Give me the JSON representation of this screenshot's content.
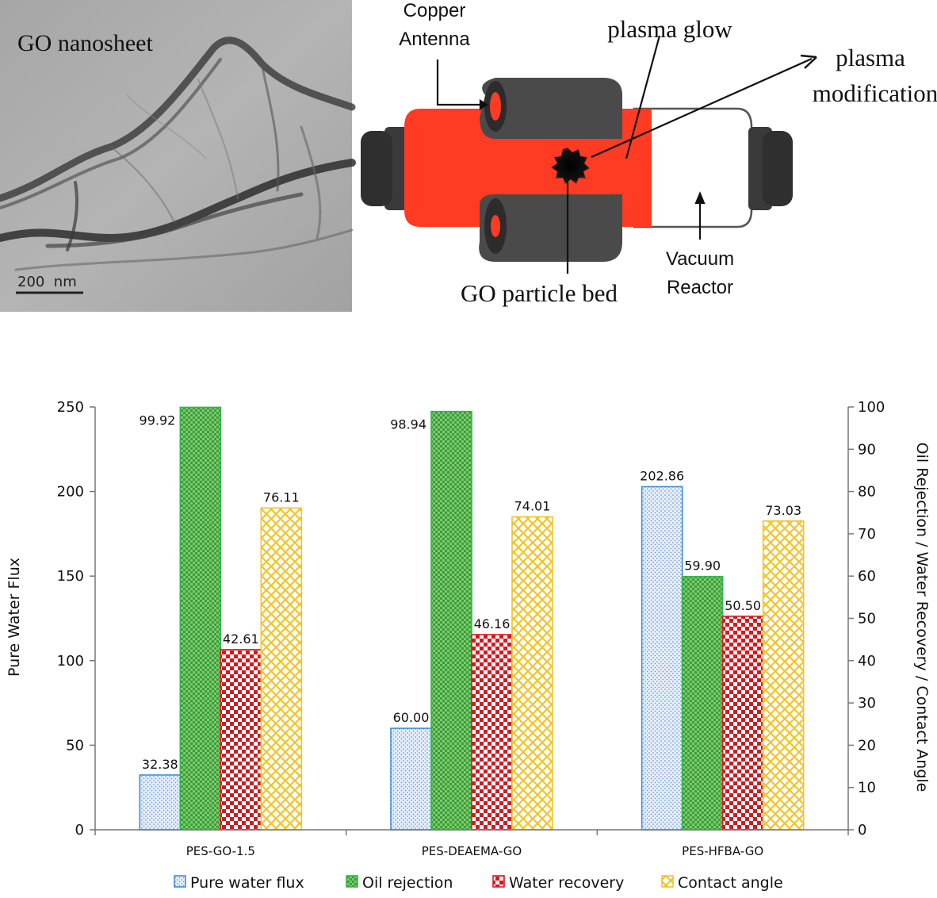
{
  "figure": {
    "tem_panel": {
      "title": "GO nanosheet",
      "scale_bar": "200  nm"
    },
    "reactor": {
      "labels": {
        "copper_antenna_1": "Copper",
        "copper_antenna_2": "Antenna",
        "plasma_glow": "plasma glow",
        "plasma_mod_1": "plasma",
        "plasma_mod_2": "modification",
        "vacuum_1": "Vacuum",
        "vacuum_2": "Reactor",
        "particle_bed": "GO particle bed"
      },
      "colors": {
        "plasma": "#ff3b24",
        "coil": "#4a4a4a",
        "cap": "#3a3a3a",
        "glass": "#ffffff"
      }
    }
  },
  "chart_data": {
    "type": "bar",
    "categories": [
      "PES-GO-1.5",
      "PES-DEAEMA-GO",
      "PES-HFBA-GO"
    ],
    "series": [
      {
        "name": "Pure water flux",
        "axis": "left",
        "values": [
          32.38,
          60.0,
          202.86
        ],
        "labels": [
          "32.38",
          "60.00",
          "202.86"
        ],
        "color": "#3d8fd8",
        "fill": "#dbe8f6"
      },
      {
        "name": "Oil rejection",
        "axis": "right",
        "values": [
          99.92,
          98.94,
          59.9
        ],
        "labels": [
          "99.92",
          "98.94",
          "59.90"
        ],
        "color": "#2fb84a",
        "fill": "#66c25e"
      },
      {
        "name": "Water recovery",
        "axis": "right",
        "values": [
          42.61,
          46.16,
          50.5
        ],
        "labels": [
          "42.61",
          "46.16",
          "50.50"
        ],
        "color": "#e01b24",
        "fill": "#cf1d24"
      },
      {
        "name": "Contact angle",
        "axis": "right",
        "values": [
          76.11,
          74.01,
          73.03
        ],
        "labels": [
          "76.11",
          "74.01",
          "73.03"
        ],
        "color": "#f2c42b",
        "fill": "#f7d25a"
      }
    ],
    "ylabel_left": "Pure Water Flux",
    "ylabel_right": "Oil Rejection / Water Recovery / Contact Angle",
    "ylim_left": [
      0,
      250
    ],
    "ylim_right": [
      0,
      100
    ],
    "yticks_left": [
      "0",
      "50",
      "100",
      "150",
      "200",
      "250"
    ],
    "yticks_right": [
      "0",
      "10",
      "20",
      "30",
      "40",
      "50",
      "60",
      "70",
      "80",
      "90",
      "100"
    ],
    "legend_position": "bottom",
    "grid": false
  }
}
